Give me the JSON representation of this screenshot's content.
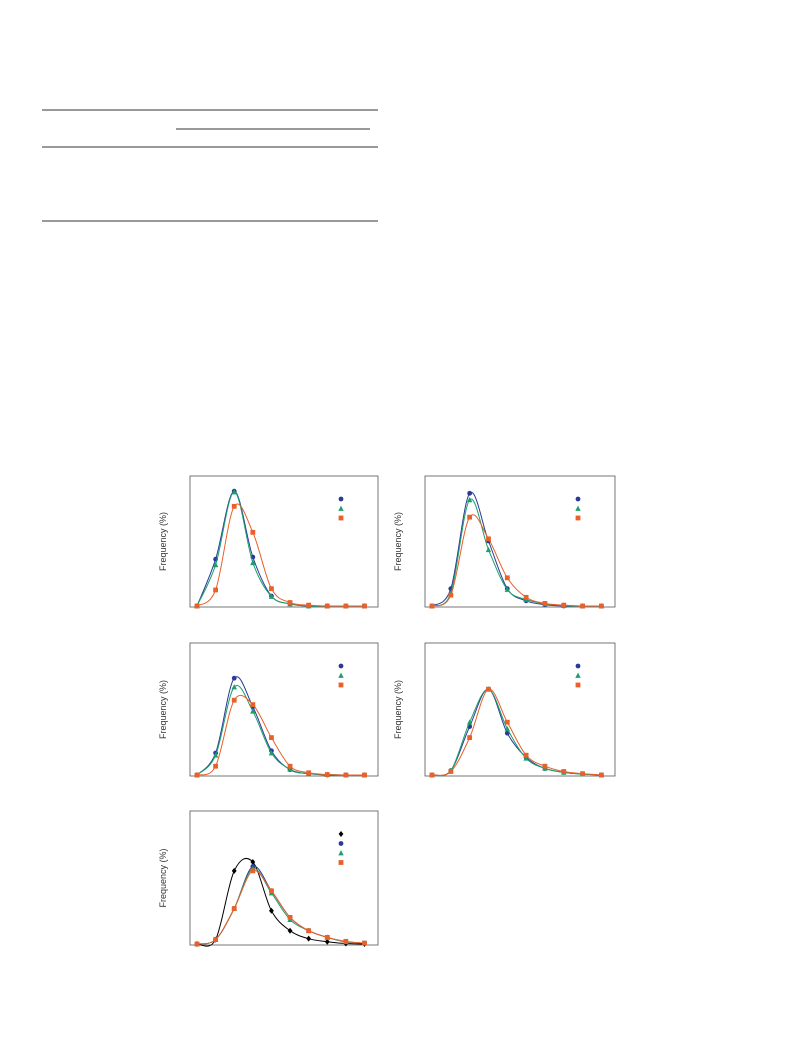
{
  "chart_data": [
    {
      "type": "line",
      "y_label": "Frequency (%)",
      "ylim": [
        0,
        30
      ],
      "series": [
        {
          "color": "#2b3a9a",
          "marker": "circle",
          "values": [
            0,
            10.8,
            26.5,
            11.3,
            2.3,
            0.5,
            0,
            0,
            0,
            0
          ]
        },
        {
          "color": "#1aa06a",
          "marker": "triangle",
          "values": [
            0,
            9.5,
            26.3,
            10,
            2.2,
            0.5,
            0,
            0,
            0,
            0
          ]
        },
        {
          "color": "#e8602a",
          "marker": "square",
          "values": [
            0,
            3.7,
            23,
            17,
            4,
            0.8,
            0.2,
            0,
            0,
            0
          ]
        }
      ]
    },
    {
      "type": "line",
      "y_label": "Frequency (%)",
      "ylim": [
        0,
        30
      ],
      "series": [
        {
          "color": "#2b3a9a",
          "marker": "circle",
          "values": [
            0,
            4,
            26,
            15,
            4,
            1.2,
            0.3,
            0,
            0,
            0
          ]
        },
        {
          "color": "#1aa06a",
          "marker": "triangle",
          "values": [
            0,
            3,
            24.5,
            13,
            3.8,
            1.5,
            0.5,
            0.1,
            0,
            0
          ]
        },
        {
          "color": "#e8602a",
          "marker": "square",
          "values": [
            0,
            2.5,
            20.5,
            15.5,
            6.5,
            2,
            0.6,
            0.2,
            0,
            0
          ]
        }
      ]
    },
    {
      "type": "line",
      "y_label": "Frequency (%)",
      "ylim": [
        0,
        30
      ],
      "series": [
        {
          "color": "#2b3a9a",
          "marker": "circle",
          "values": [
            0,
            5,
            22,
            15.5,
            5.5,
            1.2,
            0.3,
            0,
            0,
            0
          ]
        },
        {
          "color": "#1aa06a",
          "marker": "triangle",
          "values": [
            0,
            4.5,
            20,
            14.5,
            5,
            1.3,
            0.3,
            0.1,
            0,
            0
          ]
        },
        {
          "color": "#e8602a",
          "marker": "square",
          "values": [
            0,
            2,
            17,
            16,
            8.5,
            2,
            0.5,
            0.1,
            0,
            0
          ]
        }
      ]
    },
    {
      "type": "line",
      "y_label": "Frequency (%)",
      "ylim": [
        0,
        30
      ],
      "series": [
        {
          "color": "#2b3a9a",
          "marker": "circle",
          "values": [
            0,
            1,
            11,
            19.5,
            9.5,
            4,
            1.5,
            0.6,
            0.2,
            0
          ]
        },
        {
          "color": "#1aa06a",
          "marker": "triangle",
          "values": [
            0,
            1,
            12,
            19.5,
            10.5,
            3.8,
            1.5,
            0.6,
            0.2,
            0
          ]
        },
        {
          "color": "#e8602a",
          "marker": "square",
          "values": [
            0,
            0.8,
            8.5,
            19.5,
            12,
            4.5,
            2,
            0.8,
            0.3,
            0
          ]
        }
      ]
    },
    {
      "type": "line",
      "y_label": "Frequency (%)",
      "ylim": [
        0,
        30
      ],
      "series": [
        {
          "color": "#000000",
          "marker": "diamond",
          "values": [
            0,
            1,
            16.5,
            18.5,
            7.5,
            3,
            1.2,
            0.5,
            0.1,
            0
          ]
        },
        {
          "color": "#2b3a9a",
          "marker": "circle",
          "values": [
            0,
            1,
            8,
            17.5,
            12,
            6,
            3,
            1.5,
            0.5,
            0.2
          ]
        },
        {
          "color": "#1aa06a",
          "marker": "triangle",
          "values": [
            0,
            1,
            8,
            17,
            11.5,
            5.5,
            3,
            1.5,
            0.5,
            0.2
          ]
        },
        {
          "color": "#e8602a",
          "marker": "square",
          "values": [
            0,
            1,
            8,
            16.5,
            12,
            6,
            3,
            1.5,
            0.6,
            0.2
          ]
        }
      ]
    }
  ]
}
